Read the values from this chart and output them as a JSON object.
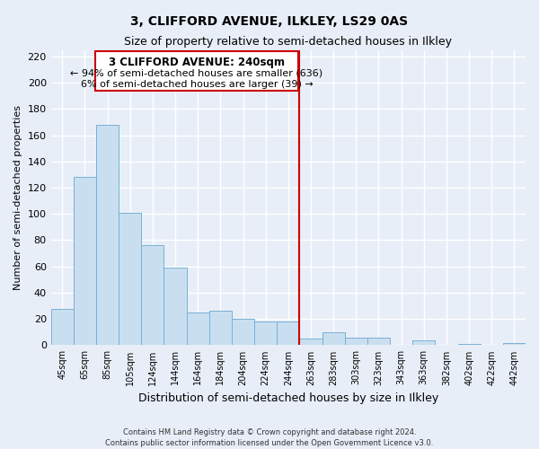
{
  "title": "3, CLIFFORD AVENUE, ILKLEY, LS29 0AS",
  "subtitle": "Size of property relative to semi-detached houses in Ilkley",
  "xlabel": "Distribution of semi-detached houses by size in Ilkley",
  "ylabel": "Number of semi-detached properties",
  "categories": [
    "45sqm",
    "65sqm",
    "85sqm",
    "105sqm",
    "124sqm",
    "144sqm",
    "164sqm",
    "184sqm",
    "204sqm",
    "224sqm",
    "244sqm",
    "263sqm",
    "283sqm",
    "303sqm",
    "323sqm",
    "343sqm",
    "363sqm",
    "382sqm",
    "402sqm",
    "422sqm",
    "442sqm"
  ],
  "values": [
    28,
    128,
    168,
    101,
    76,
    59,
    25,
    26,
    20,
    18,
    18,
    5,
    10,
    6,
    6,
    0,
    4,
    0,
    1,
    0,
    2
  ],
  "bar_color": "#c9dff0",
  "bar_edge_color": "#7ab0d4",
  "annotation_title": "3 CLIFFORD AVENUE: 240sqm",
  "annotation_line1": "← 94% of semi-detached houses are smaller (636)",
  "annotation_line2": "6% of semi-detached houses are larger (39) →",
  "annotation_box_color": "#ffffff",
  "annotation_box_edge_color": "#cc0000",
  "vline_color": "#cc0000",
  "ylim": [
    0,
    225
  ],
  "yticks": [
    0,
    20,
    40,
    60,
    80,
    100,
    120,
    140,
    160,
    180,
    200,
    220
  ],
  "footer_line1": "Contains HM Land Registry data © Crown copyright and database right 2024.",
  "footer_line2": "Contains public sector information licensed under the Open Government Licence v3.0.",
  "bg_color": "#e8eef8",
  "plot_bg_color": "#e8eef8",
  "grid_color": "#ffffff"
}
